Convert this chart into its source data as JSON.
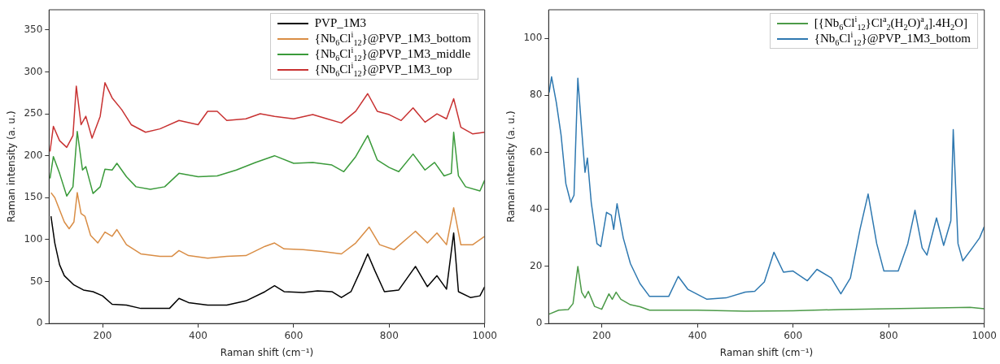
{
  "chart_data": [
    {
      "type": "line",
      "xlabel": "Raman shift (cm⁻¹)",
      "ylabel": "Raman intensity (a. u.)",
      "xlim": [
        88,
        1000
      ],
      "ylim": [
        0,
        374
      ],
      "xticks": [
        200,
        400,
        600,
        800,
        1000
      ],
      "yticks": [
        0,
        50,
        100,
        150,
        200,
        250,
        300,
        350
      ],
      "grid": false,
      "legend": "top right",
      "marker": "none",
      "line_style": "solid",
      "series": [
        {
          "name": "PVP_1M3",
          "color": "#000000",
          "x": [
            92,
            100,
            110,
            120,
            140,
            160,
            180,
            200,
            220,
            250,
            280,
            300,
            340,
            360,
            380,
            420,
            460,
            500,
            540,
            560,
            580,
            620,
            650,
            680,
            700,
            720,
            740,
            755,
            770,
            790,
            820,
            855,
            880,
            900,
            920,
            935,
            945,
            970,
            990,
            1000
          ],
          "values": [
            128,
            96,
            70,
            57,
            46,
            40,
            38,
            33,
            23,
            22,
            18,
            18,
            18,
            30,
            25,
            22,
            22,
            27,
            38,
            45,
            38,
            37,
            39,
            38,
            31,
            38,
            63,
            83,
            63,
            38,
            40,
            68,
            44,
            57,
            41,
            108,
            38,
            31,
            33,
            44
          ]
        },
        {
          "name": "{Nb$_{6}$Cl$^{i}$$_{12}$}@PVP_1M3_bottom",
          "color": "#d98d45",
          "x": [
            92,
            100,
            120,
            130,
            140,
            147,
            155,
            163,
            175,
            190,
            205,
            220,
            230,
            250,
            280,
            320,
            345,
            360,
            380,
            420,
            460,
            500,
            540,
            560,
            580,
            620,
            660,
            700,
            730,
            758,
            780,
            810,
            855,
            880,
            900,
            920,
            935,
            950,
            975,
            1000
          ],
          "values": [
            156,
            150,
            121,
            113,
            121,
            156,
            131,
            128,
            105,
            96,
            109,
            104,
            112,
            94,
            83,
            80,
            80,
            87,
            81,
            78,
            80,
            81,
            92,
            96,
            89,
            88,
            86,
            83,
            96,
            115,
            94,
            88,
            110,
            96,
            108,
            94,
            138,
            94,
            94,
            104
          ]
        },
        {
          "name": "{Nb$_{6}$Cl$^{i}$$_{12}$}@PVP_1M3_middle",
          "color": "#3a9a3a",
          "x": [
            90,
            97,
            110,
            125,
            138,
            147,
            158,
            165,
            180,
            195,
            205,
            220,
            230,
            250,
            270,
            300,
            330,
            360,
            400,
            440,
            480,
            520,
            560,
            600,
            640,
            680,
            705,
            730,
            755,
            775,
            800,
            820,
            850,
            875,
            895,
            915,
            930,
            935,
            945,
            960,
            990,
            1000
          ],
          "values": [
            173,
            199,
            179,
            152,
            163,
            229,
            183,
            187,
            155,
            163,
            184,
            183,
            191,
            175,
            163,
            160,
            163,
            179,
            175,
            176,
            183,
            192,
            200,
            191,
            192,
            189,
            181,
            199,
            224,
            195,
            186,
            181,
            202,
            183,
            192,
            176,
            179,
            228,
            176,
            163,
            158,
            171
          ]
        },
        {
          "name": "{Nb$_{6}$Cl$^{i}$$_{12}$}@PVP_1M3_top",
          "color": "#c83232",
          "x": [
            90,
            97,
            110,
            125,
            138,
            145,
            155,
            165,
            178,
            195,
            205,
            220,
            240,
            260,
            290,
            320,
            360,
            400,
            420,
            440,
            460,
            500,
            530,
            560,
            600,
            640,
            670,
            700,
            730,
            755,
            775,
            800,
            825,
            850,
            875,
            900,
            920,
            935,
            950,
            975,
            1000
          ],
          "values": [
            205,
            235,
            218,
            210,
            224,
            283,
            237,
            247,
            221,
            247,
            287,
            269,
            255,
            237,
            228,
            232,
            242,
            237,
            253,
            253,
            242,
            244,
            250,
            247,
            244,
            249,
            244,
            239,
            253,
            274,
            253,
            249,
            242,
            257,
            240,
            250,
            244,
            268,
            234,
            226,
            228
          ]
        }
      ]
    },
    {
      "type": "line",
      "xlabel": "Raman shift (cm⁻¹)",
      "ylabel": "Raman intensity (a. u.)",
      "xlim": [
        89,
        1000
      ],
      "ylim": [
        0,
        110
      ],
      "xticks": [
        200,
        400,
        600,
        800,
        1000
      ],
      "yticks": [
        0,
        20,
        40,
        60,
        80,
        100
      ],
      "grid": false,
      "legend": "top right",
      "marker": "none",
      "line_style": "solid",
      "series": [
        {
          "name": "[{Nb$_{6}$Cl$^{i}$$_{12}$}Cl$^{a}$$_{2}$(H$_{2}$O)$^{a}$$_{4}$].4H$_{2}$O]",
          "color": "#4c9a48",
          "x": [
            90,
            110,
            130,
            140,
            150,
            158,
            165,
            172,
            185,
            200,
            215,
            222,
            230,
            240,
            260,
            280,
            300,
            400,
            500,
            600,
            700,
            800,
            900,
            970,
            1000
          ],
          "values": [
            3.3,
            4.7,
            4.9,
            7,
            20,
            11,
            9,
            11.3,
            6,
            5,
            10.4,
            8.5,
            11,
            8.5,
            6.6,
            5.9,
            4.7,
            4.7,
            4.3,
            4.5,
            4.9,
            5.2,
            5.5,
            5.7,
            5.2
          ]
        },
        {
          "name": "{Nb$_{6}$Cl$^{i}$$_{12}$}@PVP_1M3_bottom",
          "color": "#2e78b0",
          "x": [
            90,
            95,
            105,
            115,
            125,
            135,
            142,
            150,
            158,
            165,
            170,
            178,
            190,
            198,
            210,
            220,
            225,
            232,
            245,
            260,
            280,
            300,
            340,
            360,
            380,
            420,
            460,
            500,
            520,
            540,
            560,
            580,
            600,
            630,
            650,
            680,
            700,
            720,
            740,
            757,
            775,
            790,
            820,
            840,
            855,
            870,
            880,
            900,
            915,
            930,
            935,
            945,
            955,
            975,
            990,
            1000
          ],
          "values": [
            81,
            86.5,
            77.5,
            66,
            49,
            42.5,
            45,
            86,
            68,
            53,
            58,
            42.5,
            28,
            27,
            39,
            38,
            33,
            42,
            30,
            21,
            14,
            9.5,
            9.5,
            16.5,
            12,
            8.5,
            9,
            11,
            11.3,
            14.6,
            25,
            18,
            18.4,
            15,
            19,
            16,
            10.4,
            16,
            33,
            45.4,
            28,
            18.4,
            18.4,
            28,
            39.7,
            26.5,
            24,
            37,
            27.4,
            36,
            68,
            28,
            22,
            26.5,
            30,
            34
          ]
        }
      ]
    }
  ]
}
